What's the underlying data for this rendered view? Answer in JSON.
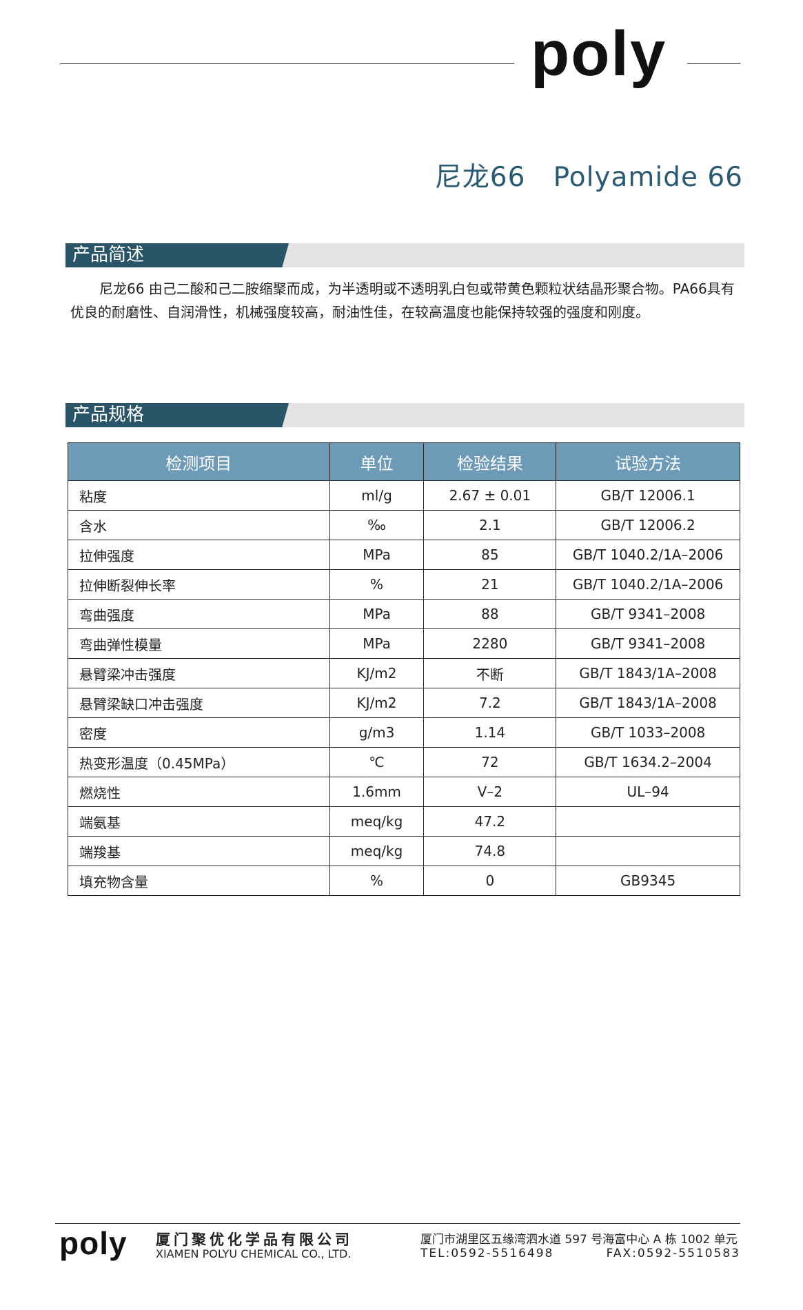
{
  "header": {
    "logo": "poly",
    "title": "尼龙66   Polyamide 66"
  },
  "overview": {
    "heading": "产品简述",
    "text": "尼龙66 由己二酸和己二胺缩聚而成，为半透明或不透明乳白包或带黄色颗粒状结晶形聚合物。PA66具有优良的耐磨性、自润滑性，机械强度较高，耐油性佳，在较高温度也能保持较强的强度和刚度。"
  },
  "specs": {
    "heading": "产品规格",
    "table": {
      "columns": [
        "检测项目",
        "单位",
        "检验结果",
        "试验方法"
      ],
      "rows": [
        [
          "粘度",
          "ml/g",
          "2.67 ± 0.01",
          "GB/T 12006.1"
        ],
        [
          "含水",
          "‰",
          "2.1",
          "GB/T 12006.2"
        ],
        [
          "拉伸强度",
          "MPa",
          "85",
          "GB/T 1040.2/1A–2006"
        ],
        [
          "拉伸断裂伸长率",
          "%",
          "21",
          "GB/T 1040.2/1A–2006"
        ],
        [
          "弯曲强度",
          "MPa",
          "88",
          "GB/T 9341–2008"
        ],
        [
          "弯曲弹性模量",
          "MPa",
          "2280",
          "GB/T 9341–2008"
        ],
        [
          "悬臂梁冲击强度",
          "KJ/m2",
          "不断",
          "GB/T 1843/1A–2008"
        ],
        [
          "悬臂梁缺口冲击强度",
          "KJ/m2",
          "7.2",
          "GB/T 1843/1A–2008"
        ],
        [
          "密度",
          "g/m3",
          "1.14",
          "GB/T 1033–2008"
        ],
        [
          "热变形温度（0.45MPa）",
          "℃",
          "72",
          "GB/T 1634.2–2004"
        ],
        [
          "燃烧性",
          "1.6mm",
          "V–2",
          "UL–94"
        ],
        [
          "端氨基",
          "meq/kg",
          "47.2"
        ],
        [
          "端羧基",
          "meq/kg",
          "74.8"
        ],
        [
          "填充物含量",
          "%",
          "0",
          "GB9345"
        ]
      ]
    }
  },
  "footer": {
    "logo": "poly",
    "company_cn": "厦门聚优化学品有限公司",
    "company_en": "XIAMEN POLYU CHEMICAL CO., LTD.",
    "address": "厦门市湖里区五缘湾泗水道 597 号海富中心 A 栋 1002 单元",
    "tel": "TEL:0592-5516498",
    "fax": "FAX:0592-5510583"
  }
}
